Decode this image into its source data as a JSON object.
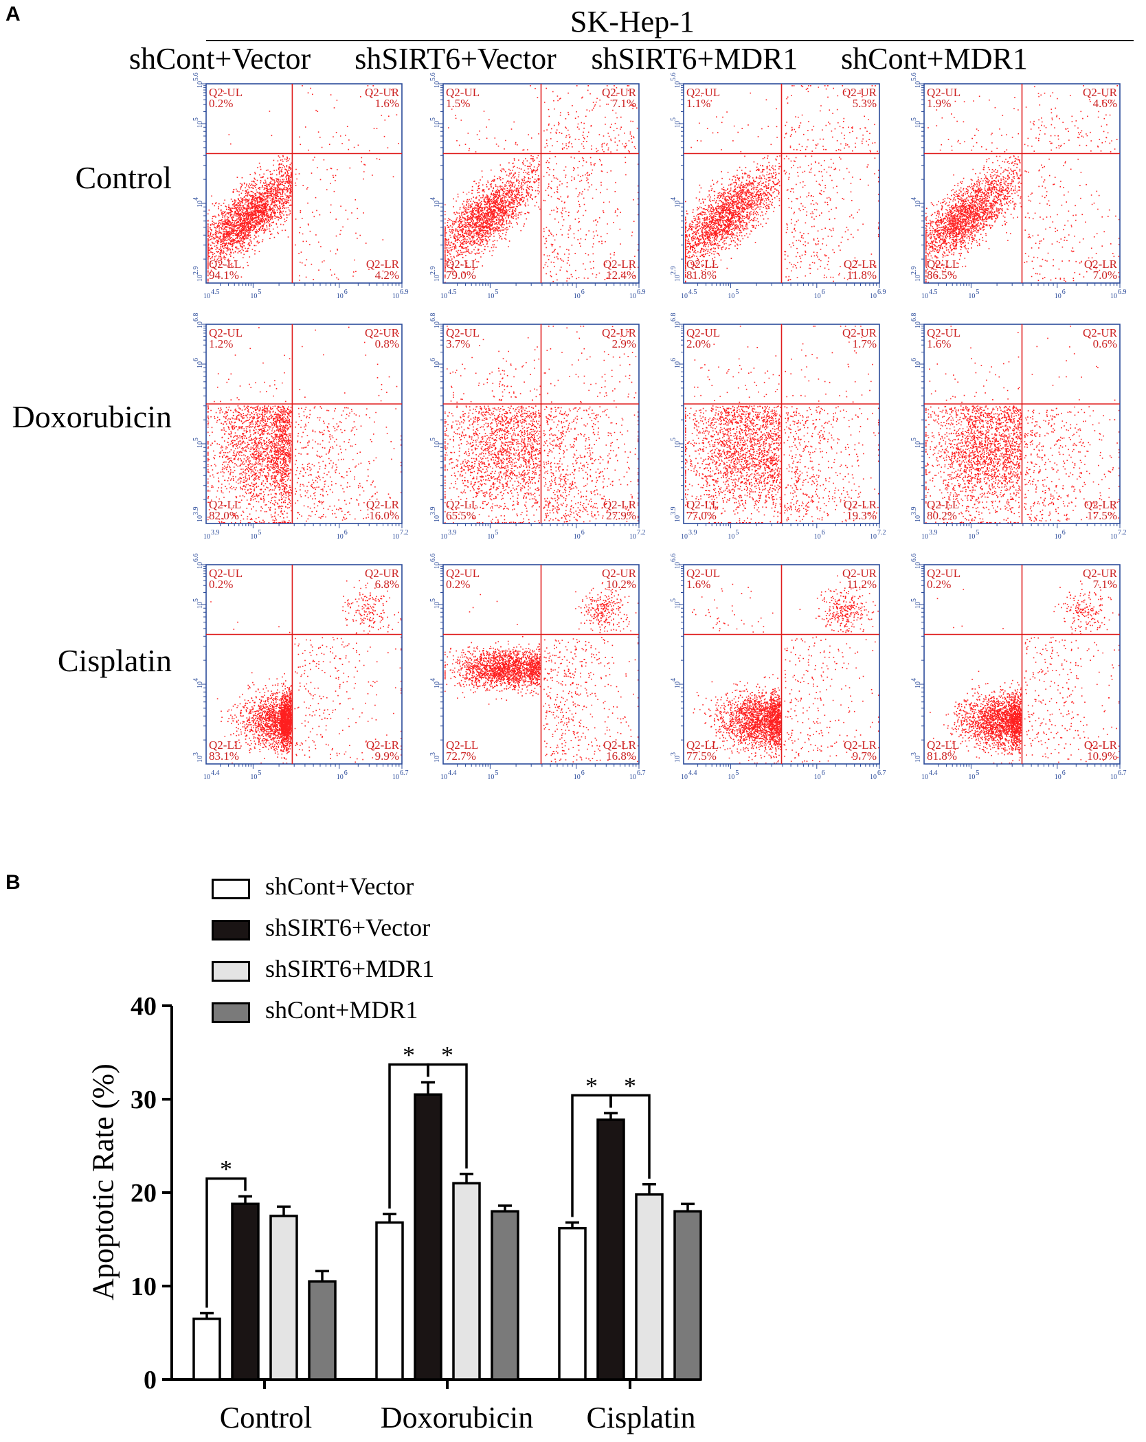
{
  "figure": {
    "panel_a_label": "A",
    "panel_b_label": "B",
    "title": "SK-Hep-1",
    "columns": [
      "shCont+Vector",
      "shSIRT6+Vector",
      "shSIRT6+MDR1",
      "shCont+MDR1"
    ],
    "rows": [
      "Control",
      "Doxorubicin",
      "Cisplatin"
    ]
  },
  "flow_rows": [
    {
      "treatment": "Control",
      "x_ticks": [
        "4.5",
        "5",
        "6",
        "6.9"
      ],
      "y_ticks": [
        "2.9",
        "4",
        "5",
        "5.6"
      ],
      "panels": [
        {
          "ul": "0.2%",
          "ur": "1.6%",
          "ll": "94.1%",
          "lr": "4.2%"
        },
        {
          "ul": "1.5%",
          "ur": "7.1%",
          "ll": "79.0%",
          "lr": "12.4%"
        },
        {
          "ul": "1.1%",
          "ur": "5.3%",
          "ll": "81.8%",
          "lr": "11.8%"
        },
        {
          "ul": "1.9%",
          "ur": "4.6%",
          "ll": "86.5%",
          "lr": "7.0%"
        }
      ]
    },
    {
      "treatment": "Doxorubicin",
      "x_ticks": [
        "3.9",
        "5",
        "6",
        "7.2"
      ],
      "y_ticks": [
        "3.9",
        "5",
        "6",
        "6.8"
      ],
      "panels": [
        {
          "ul": "1.2%",
          "ur": "0.8%",
          "ll": "82.0%",
          "lr": "16.0%"
        },
        {
          "ul": "3.7%",
          "ur": "2.9%",
          "ll": "65.5%",
          "lr": "27.9%"
        },
        {
          "ul": "2.0%",
          "ur": "1.7%",
          "ll": "77.0%",
          "lr": "19.3%"
        },
        {
          "ul": "1.6%",
          "ur": "0.6%",
          "ll": "80.2%",
          "lr": "17.5%"
        }
      ]
    },
    {
      "treatment": "Cisplatin",
      "x_ticks": [
        "4.4",
        "5",
        "6",
        "6.7"
      ],
      "y_ticks": [
        "3",
        "4",
        "5",
        "6.6"
      ],
      "panels": [
        {
          "ul": "0.2%",
          "ur": "6.8%",
          "ll": "83.1%",
          "lr": "9.9%"
        },
        {
          "ul": "0.2%",
          "ur": "10.2%",
          "ll": "72.7%",
          "lr": "16.8%"
        },
        {
          "ul": "1.6%",
          "ur": "11.2%",
          "ll": "77.5%",
          "lr": "9.7%"
        },
        {
          "ul": "0.2%",
          "ur": "7.1%",
          "ll": "81.8%",
          "lr": "10.9%"
        }
      ]
    }
  ],
  "quadrant_labels": {
    "ul": "Q2-UL",
    "ur": "Q2-UR",
    "ll": "Q2-LL",
    "lr": "Q2-LR"
  },
  "tick_base": "10",
  "colors": {
    "dots": "#ff1f1f",
    "axis": "#2a4a9a",
    "quadrant_text": "#cc2222",
    "shCont_Vector": "#ffffff",
    "shSIRT6_Vector": "#1a1414",
    "shSIRT6_MDR1": "#e4e4e4",
    "shCont_MDR1": "#7a7a7a"
  },
  "chart_data": {
    "type": "bar",
    "title": "",
    "xlabel": "",
    "ylabel": "Apoptotic Rate (%)",
    "ylim": [
      0,
      40
    ],
    "yticks": [
      0,
      10,
      20,
      30,
      40
    ],
    "categories": [
      "Control",
      "Doxorubicin",
      "Cisplatin"
    ],
    "series": [
      {
        "name": "shCont+Vector",
        "values": [
          6.5,
          16.8,
          16.2
        ],
        "errors": [
          0.6,
          0.9,
          0.6
        ]
      },
      {
        "name": "shSIRT6+Vector",
        "values": [
          18.8,
          30.5,
          27.8
        ],
        "errors": [
          0.8,
          1.3,
          0.7
        ]
      },
      {
        "name": "shSIRT6+MDR1",
        "values": [
          17.5,
          21.0,
          19.8
        ],
        "errors": [
          1.0,
          1.0,
          1.1
        ]
      },
      {
        "name": "shCont+MDR1",
        "values": [
          10.5,
          18.0,
          18.0
        ],
        "errors": [
          1.1,
          0.6,
          0.8
        ]
      }
    ],
    "significance": [
      {
        "category": "Control",
        "from_series": 0,
        "to_series": 1,
        "label": "*"
      },
      {
        "category": "Doxorubicin",
        "from_series": 0,
        "to_series": 1,
        "label": "*"
      },
      {
        "category": "Doxorubicin",
        "from_series": 1,
        "to_series": 2,
        "label": "*"
      },
      {
        "category": "Cisplatin",
        "from_series": 0,
        "to_series": 1,
        "label": "*"
      },
      {
        "category": "Cisplatin",
        "from_series": 1,
        "to_series": 2,
        "label": "*"
      }
    ],
    "legend": [
      "shCont+Vector",
      "shSIRT6+Vector",
      "shSIRT6+MDR1",
      "shCont+MDR1"
    ],
    "legend_position": "top-left"
  }
}
